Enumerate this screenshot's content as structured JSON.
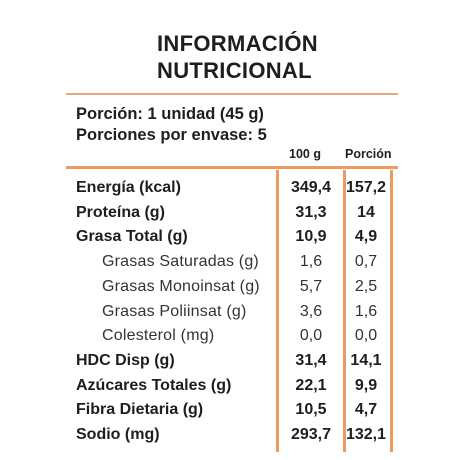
{
  "title": {
    "line1": "INFORMACIÓN",
    "line2": "NUTRICIONAL"
  },
  "serving": {
    "portion": "Porción: 1 unidad (45 g)",
    "portions_per_package": "Porciones por envase: 5"
  },
  "columns": {
    "per100": "100 g",
    "perPortion": "Porción"
  },
  "rows": [
    {
      "label": "Energía (kcal)",
      "per100": "349,4",
      "perPortion": "157,2",
      "kind": "main"
    },
    {
      "label": "Proteína (g)",
      "per100": "31,3",
      "perPortion": "14",
      "kind": "main"
    },
    {
      "label": "Grasa Total (g)",
      "per100": "10,9",
      "perPortion": "4,9",
      "kind": "main"
    },
    {
      "label": "Grasas Saturadas (g)",
      "per100": "1,6",
      "perPortion": "0,7",
      "kind": "sub"
    },
    {
      "label": "Grasas Monoinsat (g)",
      "per100": "5,7",
      "perPortion": "2,5",
      "kind": "sub"
    },
    {
      "label": "Grasas Poliinsat (g)",
      "per100": "3,6",
      "perPortion": "1,6",
      "kind": "sub"
    },
    {
      "label": "Colesterol (mg)",
      "per100": "0,0",
      "perPortion": "0,0",
      "kind": "sub"
    },
    {
      "label": "HDC Disp (g)",
      "per100": "31,4",
      "perPortion": "14,1",
      "kind": "main"
    },
    {
      "label": "Azúcares Totales (g)",
      "per100": "22,1",
      "perPortion": "9,9",
      "kind": "main"
    },
    {
      "label": "Fibra Dietaria (g)",
      "per100": "10,5",
      "perPortion": "4,7",
      "kind": "main"
    },
    {
      "label": "Sodio (mg)",
      "per100": "293,7",
      "perPortion": "132,1",
      "kind": "main"
    }
  ],
  "colors": {
    "accent": "#ed9a60",
    "text": "#1e1e1e"
  }
}
